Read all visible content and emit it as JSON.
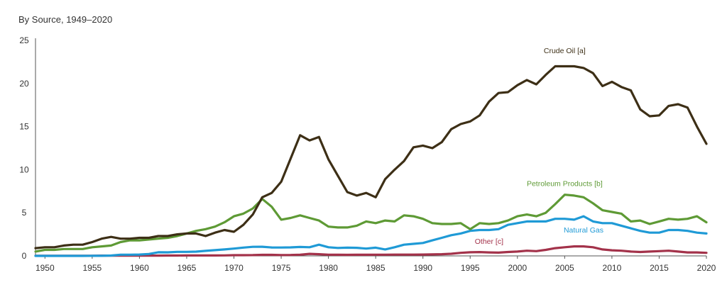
{
  "subtitle": "By Source, 1949–2020",
  "chart_data": {
    "type": "line",
    "title": "",
    "subtitle": "By Source, 1949–2020",
    "xlabel": "",
    "ylabel": "",
    "xlim": [
      1949,
      2020
    ],
    "ylim": [
      0,
      25
    ],
    "grid": false,
    "x_ticks": [
      1950,
      1955,
      1960,
      1965,
      1970,
      1975,
      1980,
      1985,
      1990,
      1995,
      2000,
      2005,
      2010,
      2015,
      2020
    ],
    "y_ticks": [
      0,
      5,
      10,
      15,
      20,
      25
    ],
    "series": [
      {
        "name": "Crude Oil [a]",
        "color": "#3d2f16",
        "x": [
          1949,
          1950,
          1951,
          1952,
          1953,
          1954,
          1955,
          1956,
          1957,
          1958,
          1959,
          1960,
          1961,
          1962,
          1963,
          1964,
          1965,
          1966,
          1967,
          1968,
          1969,
          1970,
          1971,
          1972,
          1973,
          1974,
          1975,
          1976,
          1977,
          1978,
          1979,
          1980,
          1981,
          1982,
          1983,
          1984,
          1985,
          1986,
          1987,
          1988,
          1989,
          1990,
          1991,
          1992,
          1993,
          1994,
          1995,
          1996,
          1997,
          1998,
          1999,
          2000,
          2001,
          2002,
          2003,
          2004,
          2005,
          2006,
          2007,
          2008,
          2009,
          2010,
          2011,
          2012,
          2013,
          2014,
          2015,
          2016,
          2017,
          2018,
          2019,
          2020
        ],
        "values": [
          0.9,
          1.0,
          1.0,
          1.2,
          1.3,
          1.3,
          1.6,
          2.0,
          2.2,
          2.0,
          2.0,
          2.1,
          2.1,
          2.3,
          2.3,
          2.5,
          2.6,
          2.6,
          2.3,
          2.7,
          3.0,
          2.8,
          3.6,
          4.8,
          6.8,
          7.3,
          8.6,
          11.3,
          14.0,
          13.4,
          13.8,
          11.2,
          9.3,
          7.4,
          7.0,
          7.3,
          6.8,
          8.9,
          10.0,
          11.0,
          12.6,
          12.8,
          12.5,
          13.2,
          14.7,
          15.3,
          15.6,
          16.3,
          17.9,
          18.9,
          19.0,
          19.8,
          20.4,
          19.9,
          21.0,
          22.0,
          22.0,
          22.0,
          21.8,
          21.2,
          19.7,
          20.2,
          19.6,
          19.2,
          17.0,
          16.2,
          16.3,
          17.4,
          17.6,
          17.2,
          15.0,
          13.0
        ]
      },
      {
        "name": "Petroleum Products [b]",
        "color": "#5e9a35",
        "x": [
          1949,
          1950,
          1951,
          1952,
          1953,
          1954,
          1955,
          1956,
          1957,
          1958,
          1959,
          1960,
          1961,
          1962,
          1963,
          1964,
          1965,
          1966,
          1967,
          1968,
          1969,
          1970,
          1971,
          1972,
          1973,
          1974,
          1975,
          1976,
          1977,
          1978,
          1979,
          1980,
          1981,
          1982,
          1983,
          1984,
          1985,
          1986,
          1987,
          1988,
          1989,
          1990,
          1991,
          1992,
          1993,
          1994,
          1995,
          1996,
          1997,
          1998,
          1999,
          2000,
          2001,
          2002,
          2003,
          2004,
          2005,
          2006,
          2007,
          2008,
          2009,
          2010,
          2011,
          2012,
          2013,
          2014,
          2015,
          2016,
          2017,
          2018,
          2019,
          2020
        ],
        "values": [
          0.5,
          0.7,
          0.7,
          0.8,
          0.8,
          0.8,
          1.0,
          1.1,
          1.2,
          1.6,
          1.8,
          1.8,
          1.9,
          2.0,
          2.1,
          2.3,
          2.6,
          2.9,
          3.1,
          3.4,
          3.9,
          4.6,
          4.9,
          5.5,
          6.6,
          5.7,
          4.2,
          4.4,
          4.7,
          4.4,
          4.1,
          3.4,
          3.3,
          3.3,
          3.5,
          4.0,
          3.8,
          4.1,
          4.0,
          4.7,
          4.6,
          4.3,
          3.8,
          3.7,
          3.7,
          3.8,
          3.1,
          3.8,
          3.7,
          3.8,
          4.1,
          4.6,
          4.8,
          4.6,
          5.0,
          6.0,
          7.1,
          7.0,
          6.8,
          6.1,
          5.3,
          5.1,
          4.9,
          4.0,
          4.1,
          3.7,
          4.0,
          4.3,
          4.2,
          4.3,
          4.6,
          3.9
        ]
      },
      {
        "name": "Natural Gas",
        "color": "#1f9ad6",
        "x": [
          1949,
          1950,
          1951,
          1952,
          1953,
          1954,
          1955,
          1956,
          1957,
          1958,
          1959,
          1960,
          1961,
          1962,
          1963,
          1964,
          1965,
          1966,
          1967,
          1968,
          1969,
          1970,
          1971,
          1972,
          1973,
          1974,
          1975,
          1976,
          1977,
          1978,
          1979,
          1980,
          1981,
          1982,
          1983,
          1984,
          1985,
          1986,
          1987,
          1988,
          1989,
          1990,
          1991,
          1992,
          1993,
          1994,
          1995,
          1996,
          1997,
          1998,
          1999,
          2000,
          2001,
          2002,
          2003,
          2004,
          2005,
          2006,
          2007,
          2008,
          2009,
          2010,
          2011,
          2012,
          2013,
          2014,
          2015,
          2016,
          2017,
          2018,
          2019,
          2020
        ],
        "values": [
          0,
          0,
          0,
          0,
          0,
          0,
          0.01,
          0.01,
          0.04,
          0.14,
          0.14,
          0.16,
          0.22,
          0.42,
          0.41,
          0.47,
          0.47,
          0.49,
          0.58,
          0.67,
          0.75,
          0.85,
          0.96,
          1.05,
          1.06,
          0.98,
          0.97,
          0.99,
          1.04,
          1.0,
          1.3,
          1.0,
          0.92,
          0.95,
          0.94,
          0.85,
          0.95,
          0.75,
          1.0,
          1.3,
          1.4,
          1.5,
          1.8,
          2.1,
          2.4,
          2.6,
          2.9,
          3.0,
          3.0,
          3.1,
          3.6,
          3.8,
          4.0,
          4.0,
          4.0,
          4.3,
          4.3,
          4.2,
          4.6,
          4.0,
          3.8,
          3.8,
          3.5,
          3.2,
          2.9,
          2.7,
          2.7,
          3.0,
          3.0,
          2.9,
          2.7,
          2.6
        ]
      },
      {
        "name": "Other [c]",
        "color": "#a3324a",
        "x": [
          1949,
          1950,
          1951,
          1952,
          1953,
          1954,
          1955,
          1956,
          1957,
          1958,
          1959,
          1960,
          1961,
          1962,
          1963,
          1964,
          1965,
          1966,
          1967,
          1968,
          1969,
          1970,
          1971,
          1972,
          1973,
          1974,
          1975,
          1976,
          1977,
          1978,
          1979,
          1980,
          1981,
          1982,
          1983,
          1984,
          1985,
          1986,
          1987,
          1988,
          1989,
          1990,
          1991,
          1992,
          1993,
          1994,
          1995,
          1996,
          1997,
          1998,
          1999,
          2000,
          2001,
          2002,
          2003,
          2004,
          2005,
          2006,
          2007,
          2008,
          2009,
          2010,
          2011,
          2012,
          2013,
          2014,
          2015,
          2016,
          2017,
          2018,
          2019,
          2020
        ],
        "values": [
          0.02,
          0.02,
          0.02,
          0.02,
          0.02,
          0.02,
          0.02,
          0.03,
          0.03,
          0.03,
          0.03,
          0.03,
          0.03,
          0.03,
          0.04,
          0.04,
          0.05,
          0.05,
          0.05,
          0.05,
          0.06,
          0.08,
          0.08,
          0.09,
          0.12,
          0.12,
          0.1,
          0.11,
          0.14,
          0.24,
          0.2,
          0.14,
          0.13,
          0.12,
          0.13,
          0.13,
          0.14,
          0.14,
          0.15,
          0.15,
          0.15,
          0.16,
          0.17,
          0.2,
          0.25,
          0.35,
          0.42,
          0.44,
          0.4,
          0.38,
          0.45,
          0.5,
          0.6,
          0.55,
          0.7,
          0.9,
          1.0,
          1.1,
          1.1,
          1.0,
          0.75,
          0.65,
          0.6,
          0.5,
          0.45,
          0.5,
          0.55,
          0.6,
          0.5,
          0.4,
          0.4,
          0.35
        ]
      }
    ],
    "annotations": [
      {
        "text": "Crude Oil [a]",
        "series": 0,
        "x": 2005,
        "y": 23.5
      },
      {
        "text": "Petroleum Products [b]",
        "series": 1,
        "x": 2005,
        "y": 8.1
      },
      {
        "text": "Natural Gas",
        "series": 2,
        "x": 2007,
        "y": 2.7
      },
      {
        "text": "Other [c]",
        "series": 3,
        "x": 1997,
        "y": 1.4
      }
    ]
  }
}
